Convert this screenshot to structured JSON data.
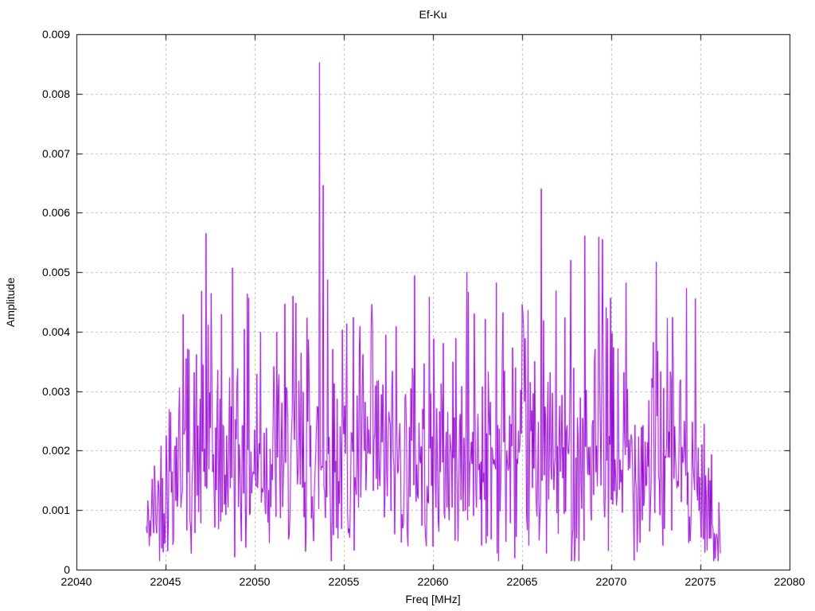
{
  "colors": {
    "background": "#ffffff",
    "trace": "#9400d3",
    "grid": "#9e9e9e",
    "border": "#000000",
    "text": "#000000"
  },
  "chart_data": {
    "type": "line",
    "title": "Ef-Ku",
    "xlabel": "Freq [MHz]",
    "ylabel": "Amplitude",
    "xlim": [
      22040,
      22080
    ],
    "ylim": [
      0,
      0.009
    ],
    "x_ticks": [
      22040,
      22045,
      22050,
      22055,
      22060,
      22065,
      22070,
      22075,
      22080
    ],
    "x_tick_labels": [
      "22040",
      "22045",
      "22050",
      "22055",
      "22060",
      "22065",
      "22070",
      "22075",
      "22080"
    ],
    "y_ticks": [
      0,
      0.001,
      0.002,
      0.003,
      0.004,
      0.005,
      0.006,
      0.007,
      0.008,
      0.009
    ],
    "y_tick_labels": [
      "0",
      "0.001",
      "0.002",
      "0.003",
      "0.004",
      "0.005",
      "0.006",
      "0.007",
      "0.008",
      "0.009"
    ],
    "grid": true,
    "grid_style": "dashed",
    "legend_position": "none",
    "series": [
      {
        "name": "Ef-Ku",
        "color": "#9400d3",
        "style": "dense noisy magnitude spectrum drawn with lines",
        "x_start": 22043.9,
        "x_end": 22076.1,
        "n_points": 780,
        "noise_seed": 42,
        "noise_sigma": 0.00155,
        "baseline_mean": 0.0019,
        "min_value": 0.00015,
        "soft_clip_level": 0.00455,
        "onset_ramp_end": 22045.4,
        "onset_level": 0.35,
        "falloff_start": 22074.4,
        "end_level": 0.25,
        "peaks": [
          {
            "x": 22045.98,
            "y": 0.0043
          },
          {
            "x": 22047.25,
            "y": 0.00566
          },
          {
            "x": 22047.38,
            "y": 0.00412
          },
          {
            "x": 22048.1,
            "y": 0.0043
          },
          {
            "x": 22048.72,
            "y": 0.00508
          },
          {
            "x": 22049.4,
            "y": 0.00405
          },
          {
            "x": 22050.3,
            "y": 0.004
          },
          {
            "x": 22051.2,
            "y": 0.004
          },
          {
            "x": 22052.3,
            "y": 0.00449
          },
          {
            "x": 22052.9,
            "y": 0.00424
          },
          {
            "x": 22053.62,
            "y": 0.00853
          },
          {
            "x": 22053.8,
            "y": 0.00647
          },
          {
            "x": 22054.08,
            "y": 0.00488
          },
          {
            "x": 22055.15,
            "y": 0.00414
          },
          {
            "x": 22055.9,
            "y": 0.0041
          },
          {
            "x": 22056.6,
            "y": 0.00412
          },
          {
            "x": 22057.9,
            "y": 0.0041
          },
          {
            "x": 22058.95,
            "y": 0.00495
          },
          {
            "x": 22060.0,
            "y": 0.00389
          },
          {
            "x": 22061.88,
            "y": 0.00501
          },
          {
            "x": 22062.9,
            "y": 0.00422
          },
          {
            "x": 22063.55,
            "y": 0.00483
          },
          {
            "x": 22063.9,
            "y": 0.00433
          },
          {
            "x": 22065.3,
            "y": 0.00437
          },
          {
            "x": 22066.07,
            "y": 0.00641
          },
          {
            "x": 22067.7,
            "y": 0.00521
          },
          {
            "x": 22068.5,
            "y": 0.00562
          },
          {
            "x": 22069.3,
            "y": 0.0056
          },
          {
            "x": 22069.5,
            "y": 0.00556
          },
          {
            "x": 22070.8,
            "y": 0.00483
          },
          {
            "x": 22072.5,
            "y": 0.00518
          },
          {
            "x": 22073.4,
            "y": 0.00425
          }
        ]
      }
    ]
  }
}
